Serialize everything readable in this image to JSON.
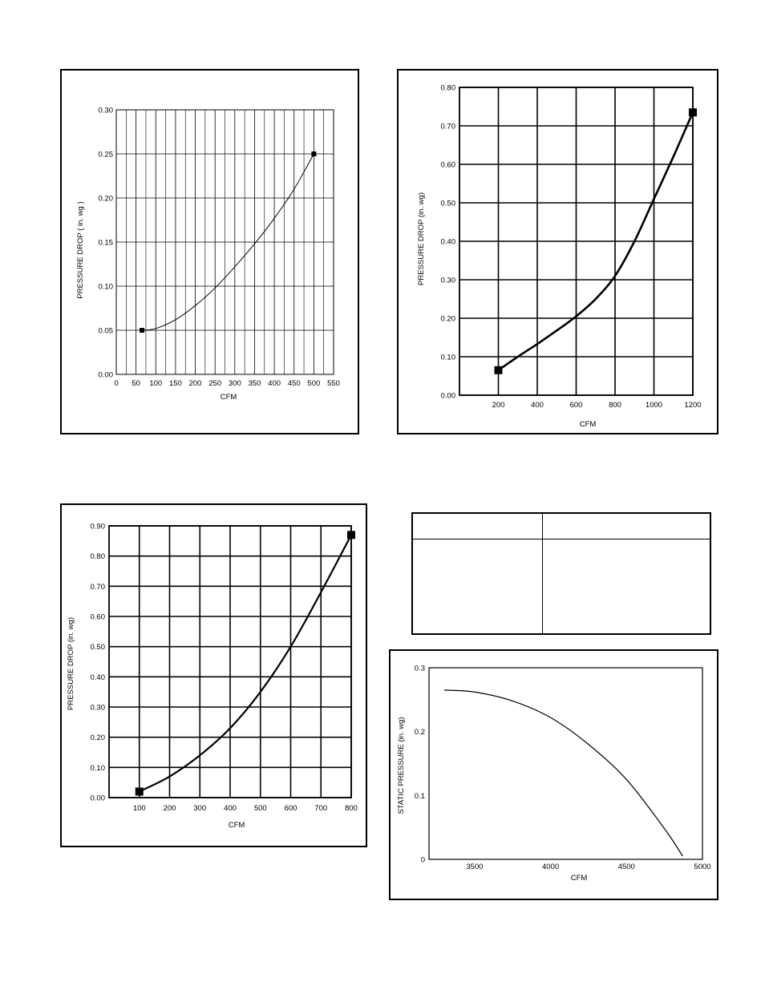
{
  "chart_data": [
    {
      "type": "line",
      "title": "",
      "xlabel": "CFM",
      "ylabel": "PRESSURE DROP ( in. wg )",
      "xlim": [
        0,
        550
      ],
      "ylim": [
        0,
        0.3
      ],
      "xticks": [
        "0",
        "50",
        "100",
        "150",
        "200",
        "250",
        "300",
        "350",
        "400",
        "450",
        "500",
        "550"
      ],
      "yticks": [
        "0.00",
        "0.05",
        "0.10",
        "0.15",
        "0.20",
        "0.25",
        "0.30"
      ],
      "grid": true,
      "series": [
        {
          "x": [
            65,
            100,
            150,
            200,
            250,
            300,
            350,
            400,
            450,
            500
          ],
          "y": [
            0.05,
            0.052,
            0.062,
            0.078,
            0.098,
            0.122,
            0.148,
            0.177,
            0.21,
            0.25
          ]
        }
      ],
      "markers": [
        {
          "x": 65,
          "y": 0.05
        },
        {
          "x": 500,
          "y": 0.25
        }
      ]
    },
    {
      "type": "line",
      "title": "",
      "xlabel": "CFM",
      "ylabel": "PRESSURE DROP (in. wg)",
      "xlim": [
        0,
        1200
      ],
      "ylim": [
        0,
        0.8
      ],
      "xticks": [
        "200",
        "400",
        "600",
        "800",
        "1000",
        "1200"
      ],
      "yticks": [
        "0.00",
        "0.10",
        "0.20",
        "0.30",
        "0.40",
        "0.50",
        "0.60",
        "0.70",
        "0.80"
      ],
      "grid": true,
      "series": [
        {
          "x": [
            200,
            300,
            400,
            500,
            600,
            700,
            800,
            900,
            1000,
            1100,
            1200
          ],
          "y": [
            0.065,
            0.1,
            0.133,
            0.168,
            0.205,
            0.25,
            0.31,
            0.4,
            0.51,
            0.62,
            0.735
          ]
        }
      ],
      "markers": [
        {
          "x": 200,
          "y": 0.065
        },
        {
          "x": 1200,
          "y": 0.735
        }
      ]
    },
    {
      "type": "line",
      "title": "",
      "xlabel": "CFM",
      "ylabel": "PRESSURE DROP (in. wg)",
      "xlim": [
        0,
        800
      ],
      "ylim": [
        0,
        0.9
      ],
      "xticks": [
        "100",
        "200",
        "300",
        "400",
        "500",
        "600",
        "700",
        "800"
      ],
      "yticks": [
        "0.00",
        "0.10",
        "0.20",
        "0.30",
        "0.40",
        "0.50",
        "0.60",
        "0.70",
        "0.80",
        "0.90"
      ],
      "grid": true,
      "series": [
        {
          "x": [
            100,
            200,
            300,
            400,
            500,
            600,
            700,
            800
          ],
          "y": [
            0.02,
            0.07,
            0.14,
            0.23,
            0.35,
            0.5,
            0.68,
            0.87
          ]
        }
      ],
      "markers": [
        {
          "x": 100,
          "y": 0.02
        },
        {
          "x": 800,
          "y": 0.87
        }
      ]
    },
    {
      "type": "line",
      "title": "",
      "xlabel": "CFM",
      "ylabel": "STATIC PRESSURE (in. wg)",
      "xlim": [
        3200,
        5000
      ],
      "ylim": [
        0,
        0.3
      ],
      "xticks": [
        "3500",
        "4000",
        "4500",
        "5000"
      ],
      "yticks": [
        "0",
        "0.1",
        "0.2",
        "0.3"
      ],
      "grid": false,
      "series": [
        {
          "x": [
            3300,
            3500,
            3750,
            4000,
            4250,
            4500,
            4750,
            4870
          ],
          "y": [
            0.265,
            0.262,
            0.248,
            0.222,
            0.18,
            0.125,
            0.048,
            0.005
          ]
        }
      ],
      "markers": []
    }
  ],
  "table": {
    "header": [
      "",
      ""
    ],
    "rows": [
      [
        "",
        ""
      ]
    ]
  }
}
